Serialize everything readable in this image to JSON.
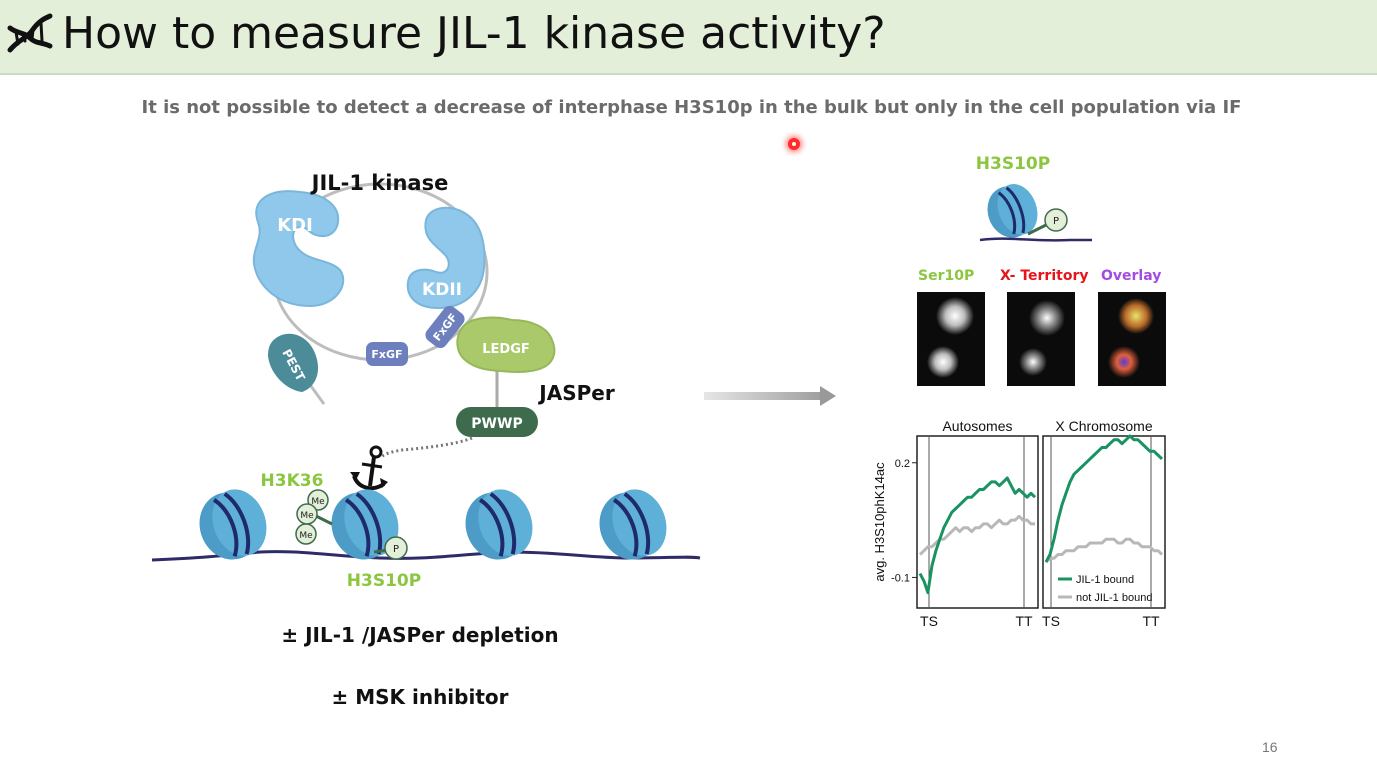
{
  "slide": {
    "title": "How to measure JIL-1 kinase activity?",
    "subtitle": "It is not possible to detect a decrease of interphase H3S10p in the bulk but only in the cell population via IF",
    "page_number": "16",
    "icon": "dna-icon"
  },
  "diagram": {
    "title": "JIL-1 kinase",
    "kdi": "KDI",
    "kdii": "KDII",
    "pest": "PEST",
    "fxgf_1": "FxGF",
    "fxgf_2": "FxGF",
    "ledgf": "LEDGF",
    "jasper": "JASPer",
    "pwwp": "PWWP",
    "h3k36": "H3K36",
    "me": "Me",
    "p": "P",
    "h3s10p": "H3S10P",
    "depletion": "±  JIL-1 /JASPer depletion",
    "inhibitor": "±  MSK inhibitor",
    "colors": {
      "protein_blue": "#8fc8ea",
      "ledgf_green": "#a9c96a",
      "pwwp_green": "#3d6b4c",
      "fxgf_purple": "#6d80bd",
      "pest_teal": "#4c8b98",
      "label_green": "#8cc63f"
    }
  },
  "right_panel": {
    "h3s10p_label": "H3S10P",
    "p_label": "P",
    "if_labels": [
      {
        "text": "Ser10P",
        "color": "#8cc63f"
      },
      {
        "text": "X- Territory",
        "color": "#e8141b"
      },
      {
        "text": "Overlay",
        "color": "#a34ce0"
      }
    ]
  },
  "chart_data": {
    "type": "line",
    "panels": [
      "Autosomes",
      "X Chromosome"
    ],
    "ylabel": "avg. H3S10phK14ac",
    "yticks": [
      0.2,
      -0.1
    ],
    "xticks": [
      "TS",
      "TT",
      "TS",
      "TT"
    ],
    "ylim": [
      -0.18,
      0.27
    ],
    "series": [
      {
        "name": "JIL-1 bound",
        "color": "#1a9363",
        "autosomes": [
          -0.09,
          -0.11,
          -0.14,
          -0.07,
          -0.03,
          0.0,
          0.03,
          0.05,
          0.07,
          0.08,
          0.09,
          0.1,
          0.11,
          0.11,
          0.12,
          0.13,
          0.13,
          0.14,
          0.15,
          0.15,
          0.14,
          0.15,
          0.16,
          0.14,
          0.12,
          0.13,
          0.12,
          0.11,
          0.12,
          0.11
        ],
        "x_chromosome": [
          -0.06,
          -0.04,
          0.0,
          0.05,
          0.09,
          0.12,
          0.15,
          0.17,
          0.18,
          0.19,
          0.2,
          0.21,
          0.22,
          0.23,
          0.24,
          0.24,
          0.25,
          0.26,
          0.26,
          0.25,
          0.26,
          0.27,
          0.26,
          0.26,
          0.25,
          0.24,
          0.23,
          0.23,
          0.22,
          0.21
        ]
      },
      {
        "name": "not JIL-1 bound",
        "color": "#b8b8b8",
        "autosomes": [
          -0.04,
          -0.03,
          -0.02,
          -0.02,
          -0.01,
          0.0,
          0.0,
          0.01,
          0.02,
          0.03,
          0.02,
          0.03,
          0.03,
          0.02,
          0.03,
          0.03,
          0.04,
          0.04,
          0.03,
          0.04,
          0.05,
          0.04,
          0.04,
          0.05,
          0.05,
          0.06,
          0.05,
          0.05,
          0.04,
          0.04
        ],
        "x_chromosome": [
          -0.06,
          -0.05,
          -0.05,
          -0.04,
          -0.04,
          -0.03,
          -0.03,
          -0.03,
          -0.02,
          -0.02,
          -0.02,
          -0.01,
          -0.01,
          -0.01,
          -0.01,
          0.0,
          0.0,
          0.0,
          -0.01,
          -0.01,
          0.0,
          0.0,
          -0.01,
          -0.01,
          -0.02,
          -0.02,
          -0.02,
          -0.03,
          -0.03,
          -0.04
        ]
      }
    ]
  }
}
